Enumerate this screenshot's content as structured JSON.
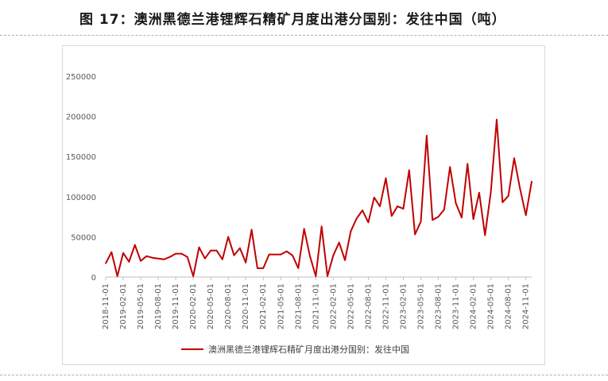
{
  "title": "图 17：澳洲黑德兰港锂辉石精矿月度出港分国别：发往中国（吨）",
  "chart_data": {
    "type": "line",
    "title": "",
    "xlabel": "",
    "ylabel": "",
    "ylim": [
      0,
      250000
    ],
    "yticks": [
      0,
      50000,
      100000,
      150000,
      200000,
      250000
    ],
    "ytick_labels": [
      "0",
      "50000",
      "100000",
      "150000",
      "200000",
      "250000"
    ],
    "xtick_labels": [
      "2018-11-01",
      "2019-02-01",
      "2019-05-01",
      "2019-08-01",
      "2019-11-01",
      "2020-02-01",
      "2020-05-01",
      "2020-08-01",
      "2020-11-01",
      "2021-02-01",
      "2021-05-01",
      "2021-08-01",
      "2021-11-01",
      "2022-02-01",
      "2022-05-01",
      "2022-08-01",
      "2022-11-01",
      "2023-02-01",
      "2023-05-01",
      "2023-08-01",
      "2023-11-01",
      "2024-02-01",
      "2024-05-01",
      "2024-08-01",
      "2024-11-01"
    ],
    "grid": false,
    "legend_position": "bottom",
    "color": "#c00000",
    "series": [
      {
        "name": "澳洲黑德兰港锂辉石精矿月度出港分国别：发往中国",
        "x": [
          "2018-11",
          "2018-12",
          "2019-01",
          "2019-02",
          "2019-03",
          "2019-04",
          "2019-05",
          "2019-06",
          "2019-07",
          "2019-08",
          "2019-09",
          "2019-10",
          "2019-11",
          "2019-12",
          "2020-01",
          "2020-02",
          "2020-03",
          "2020-04",
          "2020-05",
          "2020-06",
          "2020-07",
          "2020-08",
          "2020-09",
          "2020-10",
          "2020-11",
          "2020-12",
          "2021-01",
          "2021-02",
          "2021-03",
          "2021-04",
          "2021-05",
          "2021-06",
          "2021-07",
          "2021-08",
          "2021-09",
          "2021-10",
          "2021-11",
          "2021-12",
          "2022-01",
          "2022-02",
          "2022-03",
          "2022-04",
          "2022-05",
          "2022-06",
          "2022-07",
          "2022-08",
          "2022-09",
          "2022-10",
          "2022-11",
          "2022-12",
          "2023-01",
          "2023-02",
          "2023-03",
          "2023-04",
          "2023-05",
          "2023-06",
          "2023-07",
          "2023-08",
          "2023-09",
          "2023-10",
          "2023-11",
          "2023-12",
          "2024-01",
          "2024-02",
          "2024-03",
          "2024-04",
          "2024-05",
          "2024-06",
          "2024-07",
          "2024-08",
          "2024-09",
          "2024-10",
          "2024-11",
          "2024-12"
        ],
        "values": [
          17000,
          31000,
          1000,
          30000,
          19000,
          40000,
          20000,
          26000,
          24000,
          23000,
          22000,
          25000,
          29000,
          29000,
          25000,
          1000,
          37000,
          23000,
          33000,
          33000,
          22000,
          50000,
          27000,
          36000,
          18000,
          59000,
          11000,
          11000,
          28000,
          28000,
          28000,
          32000,
          27000,
          11000,
          60000,
          26000,
          1000,
          63000,
          1000,
          27000,
          43000,
          21000,
          57000,
          73000,
          83000,
          68000,
          99000,
          88000,
          123000,
          76000,
          88000,
          85000,
          133000,
          53000,
          69000,
          176000,
          71000,
          75000,
          84000,
          137000,
          92000,
          74000,
          141000,
          72000,
          105000,
          52000,
          106000,
          196000,
          93000,
          101000,
          148000,
          110000,
          77000,
          119000
        ]
      }
    ]
  }
}
